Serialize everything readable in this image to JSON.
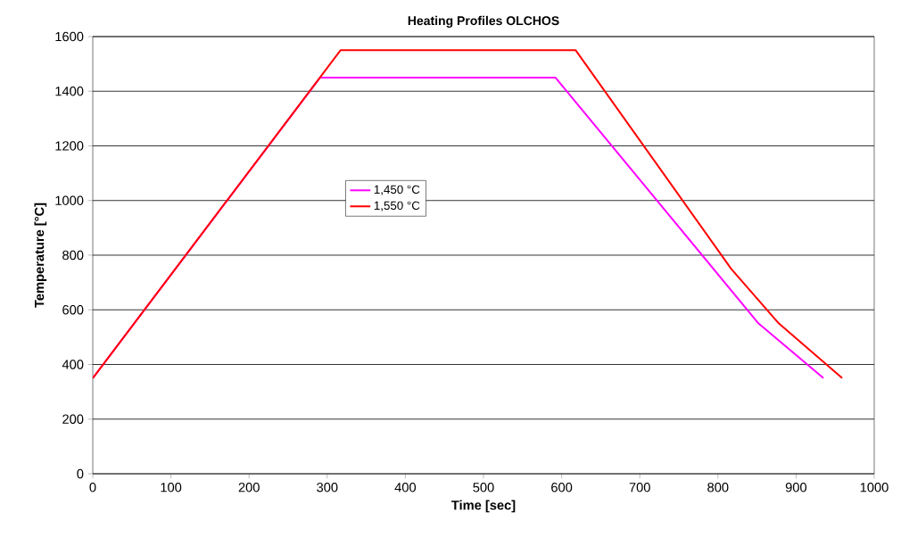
{
  "chart_data": {
    "type": "line",
    "title": "Heating Profiles OLCHOS",
    "xlabel": "Time [sec]",
    "ylabel": "Temperature [°C]",
    "xlim": [
      0,
      1000
    ],
    "ylim": [
      0,
      1600
    ],
    "xticks": [
      0,
      100,
      200,
      300,
      400,
      500,
      600,
      700,
      800,
      900,
      1000
    ],
    "yticks": [
      0,
      200,
      400,
      600,
      800,
      1000,
      1200,
      1400,
      1600
    ],
    "grid": "y",
    "legend": "center",
    "marker": "none",
    "line_style": "solid",
    "series": [
      {
        "name": "1,450 °C",
        "color": "#ff00ff",
        "x": [
          0,
          291,
          592,
          852,
          935
        ],
        "values": [
          350,
          1450,
          1450,
          550,
          350
        ]
      },
      {
        "name": "1,550 °C",
        "color": "#ff0000",
        "x": [
          0,
          317,
          618,
          817,
          878,
          959
        ],
        "values": [
          350,
          1550,
          1550,
          750,
          550,
          350
        ]
      }
    ]
  }
}
